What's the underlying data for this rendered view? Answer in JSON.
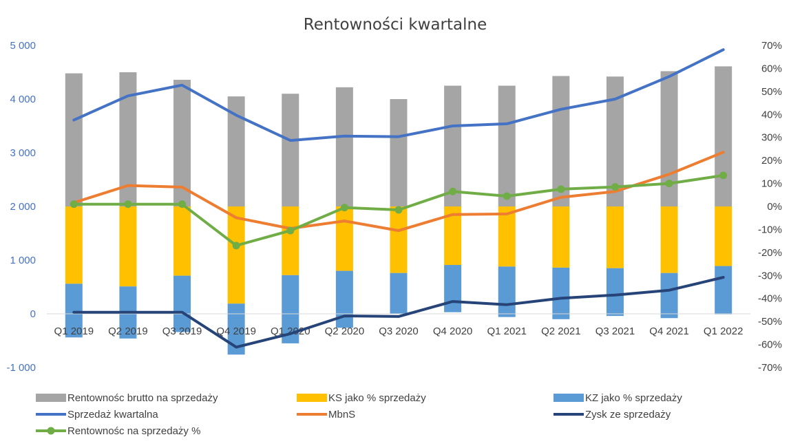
{
  "chart_data": {
    "type": "bar",
    "title": "Rentowności kwartalne",
    "categories": [
      "Q1 2019",
      "Q2 2019",
      "Q3 2019",
      "Q4 2019",
      "Q1 2020",
      "Q2 2020",
      "Q3 2020",
      "Q4 2020",
      "Q1 2021",
      "Q2 2021",
      "Q3 2021",
      "Q4 2021",
      "Q1 2022"
    ],
    "y_left": {
      "min": -1000,
      "max": 5000,
      "step": 1000,
      "tick_labels": [
        "-1 000",
        "0",
        "1 000",
        "2 000",
        "3 000",
        "4 000",
        "5 000"
      ]
    },
    "y_right": {
      "min": -70,
      "max": 70,
      "step": 10,
      "tick_labels": [
        "-70%",
        "-60%",
        "-50%",
        "-40%",
        "-30%",
        "-20%",
        "-10%",
        "0%",
        "10%",
        "20%",
        "30%",
        "40%",
        "50%",
        "60%",
        "70%"
      ]
    },
    "bar_series": [
      {
        "name": "Rentownośc brutto na sprzedaży",
        "axis": "left",
        "base": 2000,
        "color": "#a5a5a5",
        "values": [
          4480,
          4500,
          4360,
          4050,
          4100,
          4220,
          4000,
          4250,
          4250,
          4430,
          4420,
          4520,
          4610
        ]
      },
      {
        "name": "KS jako % sprzedaży",
        "axis": "left",
        "base": 2000,
        "color": "#ffc000",
        "values": [
          560,
          510,
          710,
          190,
          720,
          800,
          760,
          910,
          880,
          860,
          850,
          760,
          890
        ]
      },
      {
        "name": "KZ jako % sprzedaży",
        "axis": "left",
        "base": 0,
        "color": "#5b9bd5",
        "values": [
          {
            "top": 560,
            "bottom": -440
          },
          {
            "top": 510,
            "bottom": -460
          },
          {
            "top": 710,
            "bottom": -340
          },
          {
            "top": 190,
            "bottom": -760
          },
          {
            "top": 720,
            "bottom": -550
          },
          {
            "top": 800,
            "bottom": -260
          },
          {
            "top": 760,
            "bottom": 0
          },
          {
            "top": 910,
            "bottom": 30
          },
          {
            "top": 880,
            "bottom": -60
          },
          {
            "top": 860,
            "bottom": -100
          },
          {
            "top": 850,
            "bottom": -40
          },
          {
            "top": 760,
            "bottom": -80
          },
          {
            "top": 890,
            "bottom": -10
          }
        ]
      }
    ],
    "line_series": [
      {
        "name": "Sprzedaż kwartalna",
        "axis": "left",
        "color": "#4472c4",
        "markers": false,
        "values": [
          3610,
          4060,
          4260,
          3700,
          3230,
          3310,
          3300,
          3500,
          3540,
          3810,
          4000,
          4420,
          4920
        ]
      },
      {
        "name": "MbnS",
        "axis": "left",
        "color": "#ed7d31",
        "markers": false,
        "values": [
          2070,
          2390,
          2360,
          1790,
          1590,
          1730,
          1550,
          1850,
          1860,
          2170,
          2280,
          2600,
          3010
        ]
      },
      {
        "name": "Zysk ze sprzedaży",
        "axis": "left",
        "color": "#264478",
        "markers": false,
        "values": [
          30,
          30,
          30,
          -620,
          -370,
          -40,
          -50,
          230,
          170,
          290,
          350,
          440,
          680
        ]
      },
      {
        "name": "Rentownośc na sprzedaży %",
        "axis": "right",
        "color": "#70ad47",
        "markers": true,
        "values": [
          1,
          1,
          1,
          -17,
          -10.5,
          -0.5,
          -1.5,
          6.5,
          4.5,
          7.5,
          8.5,
          10,
          13.5
        ]
      }
    ],
    "legend": {
      "placement": "bottom",
      "rows": [
        [
          "Rentownośc brutto na sprzedaży",
          "KS jako % sprzedaży",
          "KZ jako % sprzedaży"
        ],
        [
          "Sprzedaż kwartalna",
          "MbnS",
          "Zysk ze sprzedaży"
        ],
        [
          "Rentownośc na sprzedaży %"
        ]
      ]
    },
    "grid": false
  }
}
